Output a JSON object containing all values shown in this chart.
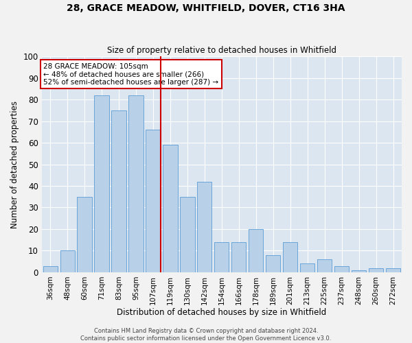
{
  "title": "28, GRACE MEADOW, WHITFIELD, DOVER, CT16 3HA",
  "subtitle": "Size of property relative to detached houses in Whitfield",
  "xlabel": "Distribution of detached houses by size in Whitfield",
  "ylabel": "Number of detached properties",
  "footer_line1": "Contains HM Land Registry data © Crown copyright and database right 2024.",
  "footer_line2": "Contains public sector information licensed under the Open Government Licence v3.0.",
  "bar_labels": [
    "36sqm",
    "48sqm",
    "60sqm",
    "71sqm",
    "83sqm",
    "95sqm",
    "107sqm",
    "119sqm",
    "130sqm",
    "142sqm",
    "154sqm",
    "166sqm",
    "178sqm",
    "189sqm",
    "201sqm",
    "213sqm",
    "225sqm",
    "237sqm",
    "248sqm",
    "260sqm",
    "272sqm"
  ],
  "bar_values": [
    3,
    10,
    35,
    82,
    75,
    82,
    66,
    59,
    35,
    42,
    14,
    14,
    20,
    8,
    14,
    4,
    6,
    3,
    1,
    2,
    2
  ],
  "bar_color": "#b8d0e8",
  "bar_edge_color": "#5b9bd5",
  "bg_color": "#dce6f1",
  "grid_color": "#ffffff",
  "vline_color": "#cc0000",
  "annotation_box_color": "#cc0000",
  "ylim": [
    0,
    100
  ],
  "yticks": [
    0,
    10,
    20,
    30,
    40,
    50,
    60,
    70,
    80,
    90,
    100
  ],
  "fig_bg": "#f2f2f2"
}
